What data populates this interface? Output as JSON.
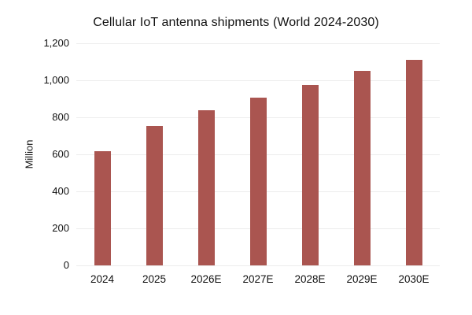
{
  "chart_data": {
    "type": "bar",
    "title": "Cellular IoT antenna shipments (World 2024-2030)",
    "xlabel": "",
    "ylabel": "Million",
    "categories": [
      "2024",
      "2025",
      "2026E",
      "2027E",
      "2028E",
      "2029E",
      "2030E"
    ],
    "values": [
      615,
      755,
      840,
      905,
      975,
      1050,
      1110
    ],
    "ylim": [
      0,
      1200
    ],
    "ytick_step": 200,
    "ytick_labels": [
      "0",
      "200",
      "400",
      "600",
      "800",
      "1,000",
      "1,200"
    ],
    "grid": "horizontal-only",
    "legend": "none",
    "colors": {
      "bar": "#AA5550",
      "gridline": "#ECECEC",
      "text": "#111111",
      "background": "#FFFFFF"
    }
  }
}
